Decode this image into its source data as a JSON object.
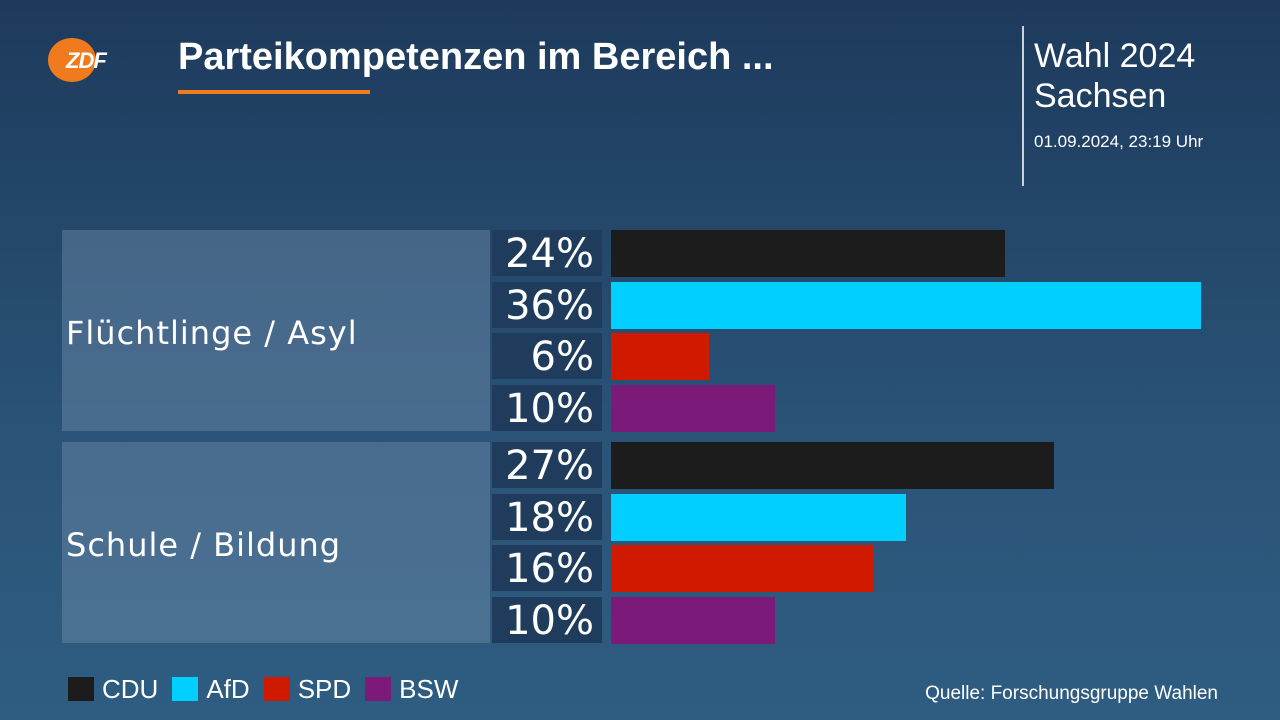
{
  "header": {
    "logo_text": "ZDF",
    "title": "Parteikompetenzen im Bereich ...",
    "election": "Wahl 2024",
    "region": "Sachsen",
    "timestamp": "01.09.2024, 23:19 Uhr"
  },
  "colors": {
    "CDU": "#1c1c1c",
    "AfD": "#00cfff",
    "SPD": "#d01a00",
    "BSW": "#7b1a78",
    "accent": "#f07a1e"
  },
  "chart_data": {
    "type": "bar",
    "orientation": "horizontal",
    "categories": [
      "Flüchtlinge / Asyl",
      "Schule / Bildung"
    ],
    "series": [
      {
        "name": "CDU",
        "values": [
          24,
          27
        ],
        "labels": [
          "24%",
          "27%"
        ]
      },
      {
        "name": "AfD",
        "values": [
          36,
          18
        ],
        "labels": [
          "36%",
          "18%"
        ]
      },
      {
        "name": "SPD",
        "values": [
          6,
          16
        ],
        "labels": [
          "6%",
          "16%"
        ]
      },
      {
        "name": "BSW",
        "values": [
          10,
          10
        ],
        "labels": [
          "10%",
          "10%"
        ]
      }
    ],
    "unit": "%",
    "legend_position": "bottom-left"
  },
  "legend": [
    "CDU",
    "AfD",
    "SPD",
    "BSW"
  ],
  "source": "Quelle: Forschungsgruppe Wahlen"
}
